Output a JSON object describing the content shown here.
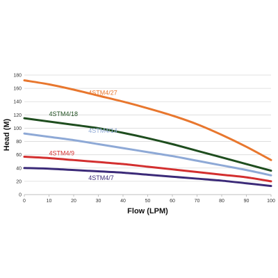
{
  "chart_data": {
    "type": "line",
    "xlabel": "Flow (LPM)",
    "ylabel": "Head (M)",
    "xlim": [
      0,
      100
    ],
    "ylim": [
      0,
      180
    ],
    "xticks": [
      0,
      10,
      20,
      30,
      40,
      50,
      60,
      70,
      80,
      90,
      100
    ],
    "yticks": [
      0,
      20,
      40,
      60,
      80,
      100,
      120,
      140,
      160,
      180
    ],
    "grid": "horizontal",
    "legend": "inline labels",
    "series": [
      {
        "name": "4STM4/27",
        "color": "#e8772e",
        "x": [
          0,
          10,
          20,
          30,
          40,
          50,
          60,
          70,
          80,
          90,
          100
        ],
        "y": [
          172,
          166,
          158,
          149,
          140,
          130,
          119,
          106,
          90,
          72,
          52
        ]
      },
      {
        "name": "4STM4/18",
        "color": "#1e4d1e",
        "x": [
          0,
          10,
          20,
          30,
          40,
          50,
          60,
          70,
          80,
          90,
          100
        ],
        "y": [
          115,
          110,
          105,
          100,
          93,
          85,
          76,
          66,
          56,
          46,
          36
        ]
      },
      {
        "name": "4STM4/14",
        "color": "#8ea9d6",
        "x": [
          0,
          10,
          20,
          30,
          40,
          50,
          60,
          70,
          80,
          90,
          100
        ],
        "y": [
          92,
          87,
          82,
          76,
          70,
          64,
          58,
          51,
          44,
          37,
          29
        ]
      },
      {
        "name": "4STM4/9",
        "color": "#d32f2f",
        "x": [
          0,
          10,
          20,
          30,
          40,
          50,
          60,
          70,
          80,
          90,
          100
        ],
        "y": [
          57,
          55,
          52,
          49,
          46,
          42,
          38,
          34,
          30,
          26,
          20
        ]
      },
      {
        "name": "4STM4/7",
        "color": "#3b2a78",
        "x": [
          0,
          10,
          20,
          30,
          40,
          50,
          60,
          70,
          80,
          90,
          100
        ],
        "y": [
          40,
          39,
          37,
          35,
          33,
          30,
          27,
          24,
          21,
          17,
          13
        ]
      }
    ]
  }
}
